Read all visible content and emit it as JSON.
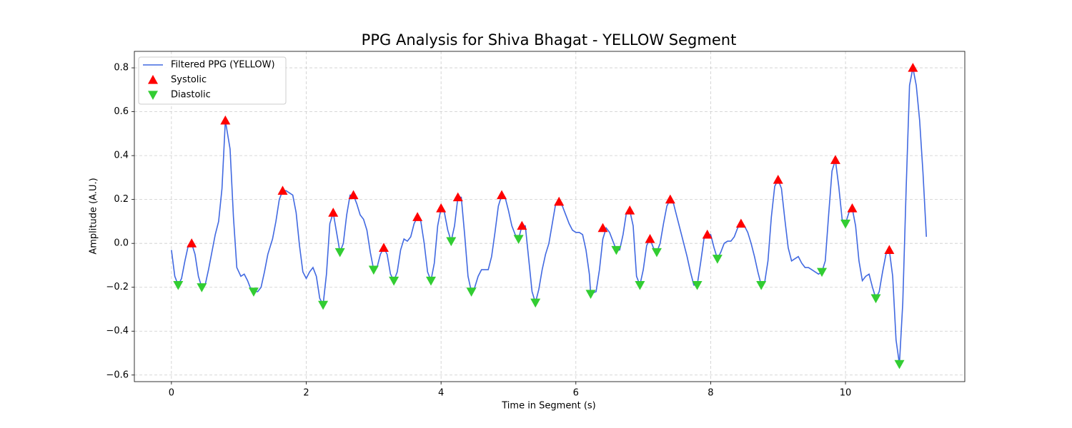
{
  "chart_data": {
    "type": "line",
    "title": "PPG Analysis for Shiva Bhagat - YELLOW Segment",
    "x_label": "Time in Segment (s)",
    "y_label": "Amplitude (A.U.)",
    "xlim": [
      -0.55,
      11.77
    ],
    "ylim": [
      -0.63,
      0.875
    ],
    "xticks": [
      0,
      2,
      4,
      6,
      8,
      10
    ],
    "yticks": [
      {
        "value": -0.6,
        "label": "−0.6"
      },
      {
        "value": -0.4,
        "label": "−0.4"
      },
      {
        "value": -0.2,
        "label": "−0.2"
      },
      {
        "value": 0.0,
        "label": "0.0"
      },
      {
        "value": 0.2,
        "label": "0.2"
      },
      {
        "value": 0.4,
        "label": "0.4"
      },
      {
        "value": 0.6,
        "label": "0.6"
      },
      {
        "value": 0.8,
        "label": "0.8"
      }
    ],
    "grid": true,
    "legend": "upper left",
    "series": [
      {
        "name": "Filtered PPG (YELLOW)",
        "color": "#4169e1",
        "marker": "line",
        "x": [
          0,
          0.05,
          0.1,
          0.15,
          0.2,
          0.25,
          0.3,
          0.35,
          0.4,
          0.45,
          0.5,
          0.55,
          0.6,
          0.65,
          0.7,
          0.75,
          0.8,
          0.87,
          0.92,
          0.97,
          1.03,
          1.08,
          1.13,
          1.18,
          1.22,
          1.28,
          1.33,
          1.38,
          1.43,
          1.5,
          1.55,
          1.6,
          1.65,
          1.7,
          1.75,
          1.8,
          1.85,
          1.9,
          1.95,
          2.0,
          2.05,
          2.1,
          2.15,
          2.2,
          2.25,
          2.3,
          2.35,
          2.4,
          2.45,
          2.5,
          2.55,
          2.6,
          2.65,
          2.7,
          2.75,
          2.8,
          2.85,
          2.9,
          2.95,
          3.0,
          3.05,
          3.1,
          3.15,
          3.2,
          3.25,
          3.3,
          3.35,
          3.4,
          3.45,
          3.5,
          3.55,
          3.6,
          3.65,
          3.7,
          3.75,
          3.8,
          3.85,
          3.9,
          3.95,
          4.0,
          4.05,
          4.1,
          4.15,
          4.2,
          4.25,
          4.3,
          4.35,
          4.4,
          4.45,
          4.5,
          4.55,
          4.6,
          4.65,
          4.7,
          4.75,
          4.8,
          4.85,
          4.9,
          4.95,
          5.0,
          5.05,
          5.1,
          5.15,
          5.2,
          5.25,
          5.3,
          5.35,
          5.4,
          5.45,
          5.5,
          5.55,
          5.6,
          5.65,
          5.7,
          5.75,
          5.8,
          5.85,
          5.9,
          5.95,
          6.0,
          6.05,
          6.1,
          6.15,
          6.2,
          6.22,
          6.3,
          6.35,
          6.4,
          6.45,
          6.5,
          6.55,
          6.6,
          6.65,
          6.7,
          6.75,
          6.8,
          6.85,
          6.9,
          6.95,
          7.0,
          7.05,
          7.1,
          7.15,
          7.2,
          7.25,
          7.3,
          7.35,
          7.4,
          7.45,
          7.5,
          7.55,
          7.6,
          7.65,
          7.7,
          7.75,
          7.8,
          7.85,
          7.9,
          7.95,
          8.0,
          8.05,
          8.1,
          8.15,
          8.2,
          8.25,
          8.3,
          8.35,
          8.4,
          8.45,
          8.5,
          8.55,
          8.6,
          8.65,
          8.7,
          8.75,
          8.8,
          8.85,
          8.9,
          8.95,
          9.0,
          9.05,
          9.1,
          9.15,
          9.2,
          9.25,
          9.3,
          9.35,
          9.4,
          9.45,
          9.5,
          9.55,
          9.6,
          9.65,
          9.7,
          9.75,
          9.8,
          9.85,
          9.9,
          9.95,
          10.0,
          10.05,
          10.1,
          10.15,
          10.2,
          10.25,
          10.3,
          10.35,
          10.4,
          10.45,
          10.5,
          10.55,
          10.6,
          10.65,
          10.7,
          10.75,
          10.8,
          10.85,
          10.9,
          10.95,
          11.0,
          11.05,
          11.1,
          11.15,
          11.2
        ],
        "values": [
          -0.03,
          -0.15,
          -0.19,
          -0.16,
          -0.08,
          -0.01,
          0.0,
          -0.05,
          -0.15,
          -0.2,
          -0.19,
          -0.12,
          -0.04,
          0.04,
          0.1,
          0.25,
          0.56,
          0.43,
          0.12,
          -0.11,
          -0.15,
          -0.14,
          -0.17,
          -0.21,
          -0.22,
          -0.22,
          -0.2,
          -0.13,
          -0.05,
          0.02,
          0.1,
          0.2,
          0.24,
          0.24,
          0.23,
          0.22,
          0.14,
          -0.01,
          -0.13,
          -0.16,
          -0.13,
          -0.11,
          -0.15,
          -0.25,
          -0.28,
          -0.14,
          0.09,
          0.14,
          0.05,
          -0.04,
          0.0,
          0.13,
          0.22,
          0.22,
          0.18,
          0.13,
          0.11,
          0.06,
          -0.04,
          -0.12,
          -0.11,
          -0.05,
          -0.02,
          -0.05,
          -0.14,
          -0.17,
          -0.13,
          -0.03,
          0.02,
          0.01,
          0.03,
          0.09,
          0.12,
          0.1,
          0.0,
          -0.13,
          -0.17,
          -0.09,
          0.08,
          0.16,
          0.14,
          0.06,
          0.01,
          0.08,
          0.21,
          0.21,
          0.04,
          -0.15,
          -0.22,
          -0.2,
          -0.15,
          -0.12,
          -0.12,
          -0.12,
          -0.06,
          0.05,
          0.17,
          0.22,
          0.21,
          0.15,
          0.08,
          0.04,
          0.02,
          0.08,
          0.08,
          -0.07,
          -0.22,
          -0.27,
          -0.21,
          -0.12,
          -0.05,
          0.0,
          0.09,
          0.18,
          0.19,
          0.17,
          0.13,
          0.09,
          0.06,
          0.05,
          0.05,
          0.04,
          -0.03,
          -0.14,
          -0.23,
          -0.22,
          -0.12,
          0.02,
          0.07,
          0.05,
          0.01,
          -0.03,
          -0.03,
          0.04,
          0.14,
          0.15,
          0.08,
          -0.15,
          -0.19,
          -0.12,
          -0.01,
          0.02,
          -0.02,
          -0.04,
          0.0,
          0.09,
          0.17,
          0.2,
          0.18,
          0.12,
          0.06,
          0.0,
          -0.06,
          -0.13,
          -0.19,
          -0.19,
          -0.09,
          0.02,
          0.04,
          0.04,
          -0.02,
          -0.07,
          -0.04,
          0.0,
          0.01,
          0.01,
          0.03,
          0.07,
          0.09,
          0.08,
          0.05,
          0.0,
          -0.06,
          -0.13,
          -0.19,
          -0.18,
          -0.08,
          0.12,
          0.26,
          0.29,
          0.25,
          0.11,
          -0.02,
          -0.08,
          -0.07,
          -0.06,
          -0.09,
          -0.11,
          -0.11,
          -0.12,
          -0.13,
          -0.14,
          -0.13,
          -0.08,
          0.13,
          0.33,
          0.38,
          0.26,
          0.11,
          0.09,
          0.14,
          0.16,
          0.08,
          -0.08,
          -0.17,
          -0.15,
          -0.14,
          -0.2,
          -0.25,
          -0.22,
          -0.13,
          -0.05,
          -0.03,
          -0.15,
          -0.44,
          -0.55,
          -0.27,
          0.25,
          0.72,
          0.8,
          0.72,
          0.56,
          0.32,
          0.03
        ]
      },
      {
        "name": "Systolic",
        "color": "#ff0000",
        "marker": "up",
        "x": [
          0.3,
          0.8,
          1.65,
          2.4,
          2.7,
          3.15,
          3.65,
          4.0,
          4.25,
          4.9,
          5.2,
          5.75,
          6.4,
          6.8,
          7.1,
          7.4,
          7.95,
          8.45,
          9.0,
          9.85,
          10.1,
          10.65,
          11.0
        ],
        "values": [
          0.0,
          0.56,
          0.24,
          0.14,
          0.22,
          -0.02,
          0.12,
          0.16,
          0.21,
          0.22,
          0.08,
          0.19,
          0.07,
          0.15,
          0.02,
          0.2,
          0.04,
          0.09,
          0.29,
          0.38,
          0.16,
          -0.03,
          0.8
        ]
      },
      {
        "name": "Diastolic",
        "color": "#32cd32",
        "marker": "down",
        "x": [
          0.1,
          0.45,
          1.22,
          2.25,
          2.5,
          3.0,
          3.3,
          3.85,
          4.15,
          4.45,
          5.15,
          5.4,
          6.22,
          6.6,
          6.95,
          7.2,
          7.8,
          8.1,
          8.75,
          9.65,
          10.0,
          10.45,
          10.8
        ],
        "values": [
          -0.19,
          -0.2,
          -0.22,
          -0.28,
          -0.04,
          -0.12,
          -0.17,
          -0.17,
          0.01,
          -0.22,
          0.02,
          -0.27,
          -0.23,
          -0.03,
          -0.19,
          -0.04,
          -0.19,
          -0.07,
          -0.19,
          -0.13,
          0.09,
          -0.25,
          -0.55
        ]
      }
    ]
  }
}
